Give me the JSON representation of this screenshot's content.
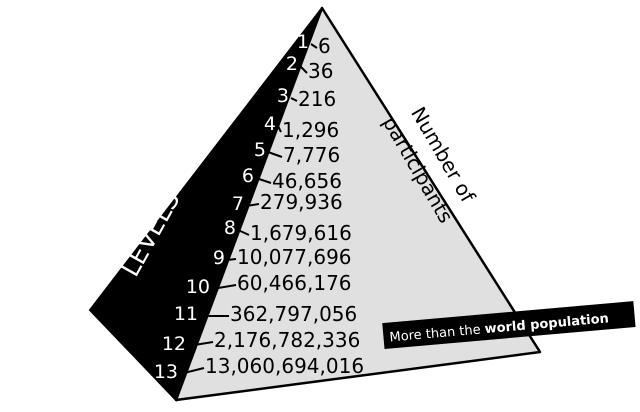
{
  "diagram": {
    "levels_title": "LEVELS",
    "participants_title_line1": "Number of",
    "participants_title_line2": "participants",
    "banner": {
      "prefix": "More than the ",
      "emphasis": "world population"
    },
    "levels": [
      {
        "level": "1",
        "participants": "6"
      },
      {
        "level": "2",
        "participants": "36"
      },
      {
        "level": "3",
        "participants": "216"
      },
      {
        "level": "4",
        "participants": "1,296"
      },
      {
        "level": "5",
        "participants": "7,776"
      },
      {
        "level": "6",
        "participants": "46,656"
      },
      {
        "level": "7",
        "participants": "279,936"
      },
      {
        "level": "8",
        "participants": "1,679,616"
      },
      {
        "level": "9",
        "participants": "10,077,696"
      },
      {
        "level": "10",
        "participants": "60,466,176"
      },
      {
        "level": "11",
        "participants": "362,797,056"
      },
      {
        "level": "12",
        "participants": "2,176,782,336"
      },
      {
        "level": "13",
        "participants": "13,060,694,016"
      }
    ],
    "colors": {
      "left_face": "#000000",
      "right_face": "#e0e0e0",
      "banner": "#000000"
    }
  }
}
